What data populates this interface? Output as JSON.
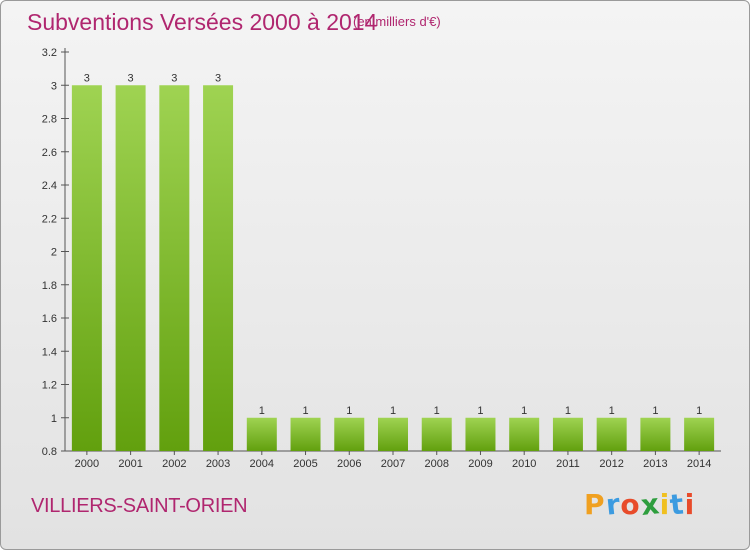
{
  "title": "Subventions Versées 2000 à 2014",
  "subtitle": "(en milliers d'€)",
  "commune": "VILLIERS-SAINT-ORIEN",
  "logo": {
    "letters": [
      "P",
      "r",
      "o",
      "x",
      "i",
      "t",
      "i"
    ],
    "colors": [
      "#f0a020",
      "#3c9be0",
      "#e84b2a",
      "#2e9e3e",
      "#f0c020",
      "#3c9be0",
      "#e84b2a"
    ]
  },
  "colors": {
    "bar_light": "#9fd352",
    "bar_dark": "#62a00e",
    "accent": "#b0266f"
  },
  "chart_data": {
    "type": "bar",
    "title": "Subventions Versées 2000 à 2014",
    "subtitle": "(en milliers d'€)",
    "xlabel": "",
    "ylabel": "",
    "categories": [
      "2000",
      "2001",
      "2002",
      "2003",
      "2004",
      "2005",
      "2006",
      "2007",
      "2008",
      "2009",
      "2010",
      "2011",
      "2012",
      "2013",
      "2014"
    ],
    "values": [
      3,
      3,
      3,
      3,
      1,
      1,
      1,
      1,
      1,
      1,
      1,
      1,
      1,
      1,
      1
    ],
    "data_labels": [
      "3",
      "3",
      "3",
      "3",
      "1",
      "1",
      "1",
      "1",
      "1",
      "1",
      "1",
      "1",
      "1",
      "1",
      "1"
    ],
    "ylim": [
      0.8,
      3.2
    ],
    "yticks": [
      0.8,
      1,
      1.2,
      1.4,
      1.6,
      1.8,
      2,
      2.2,
      2.4,
      2.6,
      2.8,
      3,
      3.2
    ],
    "ytick_labels": [
      "0.8",
      "1",
      "1.2",
      "1.4",
      "1.6",
      "1.8",
      "2",
      "2.2",
      "2.4",
      "2.6",
      "2.8",
      "3",
      "3.2"
    ],
    "grid": false,
    "legend": "none"
  }
}
